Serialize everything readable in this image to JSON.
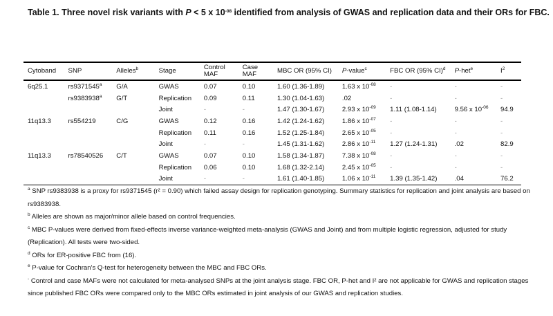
{
  "title": {
    "prefix": "Table 1. Three novel risk variants with ",
    "p": "P",
    "mid": " < 5 x 10",
    "exp": "-08",
    "suffix": " identified from analysis of GWAS and replication data and their ORs for FBC."
  },
  "headers": [
    {
      "text": "Cytoband",
      "sup": ""
    },
    {
      "text": "SNP",
      "sup": ""
    },
    {
      "text": "Alleles",
      "sup": "b"
    },
    {
      "text": "Stage",
      "sup": ""
    },
    {
      "text": "Control MAF",
      "sup": ""
    },
    {
      "text": "Case MAF",
      "sup": ""
    },
    {
      "text": "MBC OR (95% CI)",
      "sup": ""
    },
    {
      "text": "P-value",
      "sup": "c"
    },
    {
      "text": "FBC OR (95% CI)",
      "sup": "d"
    },
    {
      "text": "P-het",
      "sup": "e"
    },
    {
      "text": "I",
      "sup": "2"
    }
  ],
  "rows": [
    {
      "cyto": "6q25.1",
      "snp": "rs9371545",
      "snp_sup": "a",
      "alleles": "G/A",
      "stage": "GWAS",
      "ctrl": "0.07",
      "case": "0.10",
      "mbc": "1.60 (1.36-1.89)",
      "p": "1.63 x 10",
      "p_exp": "-08",
      "fbc": "-",
      "phet": "-",
      "phet_exp": "",
      "i2": "-"
    },
    {
      "cyto": "",
      "snp": "rs9383938",
      "snp_sup": "a",
      "alleles": "G/T",
      "stage": "Replication",
      "ctrl": "0.09",
      "case": "0.11",
      "mbc": "1.30 (1.04-1.63)",
      "p": ".02",
      "p_exp": "",
      "fbc": "-",
      "phet": "-",
      "phet_exp": "",
      "i2": "-"
    },
    {
      "cyto": "",
      "snp": "",
      "snp_sup": "",
      "alleles": "",
      "stage": "Joint",
      "ctrl": "-",
      "case": "-",
      "mbc": "1.47 (1.30-1.67)",
      "p": "2.93 x 10",
      "p_exp": "-09",
      "fbc": "1.11 (1.08-1.14)",
      "phet": "9.56 x 10",
      "phet_exp": "-06",
      "i2": "94.9"
    },
    {
      "cyto": "11q13.3",
      "snp": "rs554219",
      "snp_sup": "",
      "alleles": "C/G",
      "stage": "GWAS",
      "ctrl": "0.12",
      "case": "0.16",
      "mbc": "1.42 (1.24-1.62)",
      "p": "1.86 x 10",
      "p_exp": "-07",
      "fbc": "-",
      "phet": "-",
      "phet_exp": "",
      "i2": "-"
    },
    {
      "cyto": "",
      "snp": "",
      "snp_sup": "",
      "alleles": "",
      "stage": "Replication",
      "ctrl": "0.11",
      "case": "0.16",
      "mbc": "1.52 (1.25-1.84)",
      "p": "2.65 x 10",
      "p_exp": "-05",
      "fbc": "-",
      "phet": "-",
      "phet_exp": "",
      "i2": "-"
    },
    {
      "cyto": "",
      "snp": "",
      "snp_sup": "",
      "alleles": "",
      "stage": "Joint",
      "ctrl": "-",
      "case": "-",
      "mbc": "1.45 (1.31-1.62)",
      "p": "2.86 x 10",
      "p_exp": "-11",
      "fbc": "1.27 (1.24-1.31)",
      "phet": ".02",
      "phet_exp": "",
      "i2": "82.9"
    },
    {
      "cyto": "11q13.3",
      "snp": "rs78540526",
      "snp_sup": "",
      "alleles": "C/T",
      "stage": "GWAS",
      "ctrl": "0.07",
      "case": "0.10",
      "mbc": "1.58 (1.34-1.87)",
      "p": "7.38 x 10",
      "p_exp": "-08",
      "fbc": "-",
      "phet": "-",
      "phet_exp": "",
      "i2": "-"
    },
    {
      "cyto": "",
      "snp": "",
      "snp_sup": "",
      "alleles": "",
      "stage": "Replication",
      "ctrl": "0.06",
      "case": "0.10",
      "mbc": "1.68 (1.32-2.14)",
      "p": "2.45 x 10",
      "p_exp": "-05",
      "fbc": "-",
      "phet": "-",
      "phet_exp": "",
      "i2": "-"
    },
    {
      "cyto": "",
      "snp": "",
      "snp_sup": "",
      "alleles": "",
      "stage": "Joint",
      "ctrl": "-",
      "case": "-",
      "mbc": "1.61 (1.40-1.85)",
      "p": "1.06 x 10",
      "p_exp": "-11",
      "fbc": "1.39 (1.35-1.42)",
      "phet": ".04",
      "phet_exp": "",
      "i2": "76.2"
    }
  ],
  "footnotes": [
    {
      "mark": "a",
      "text": " SNP rs9383938 is a proxy for rs9371545 (r² = 0.90) which failed assay design for replication genotyping. Summary statistics for replication and joint analysis are based on rs9383938."
    },
    {
      "mark": "b",
      "text": " Alleles are shown as major/minor allele based on control frequencies."
    },
    {
      "mark": "c",
      "text": " MBC P-values were derived from fixed-effects inverse variance-weighted meta-analysis (GWAS and Joint) and from multiple logistic regression, adjusted for study (Replication). All tests were two-sided."
    },
    {
      "mark": "d",
      "text": " ORs for ER-positive FBC from (16)."
    },
    {
      "mark": "e",
      "text": " P-value for Cochran's Q-test for heterogeneity between the MBC and FBC ORs."
    },
    {
      "mark": "-",
      "text": " Control and case MAFs were not calculated for meta-analysed SNPs at the joint analysis stage. FBC OR, P-het and I² are not applicable for GWAS and replication stages since published FBC ORs were compared only to the MBC ORs estimated in joint analysis of our GWAS and replication studies."
    }
  ]
}
